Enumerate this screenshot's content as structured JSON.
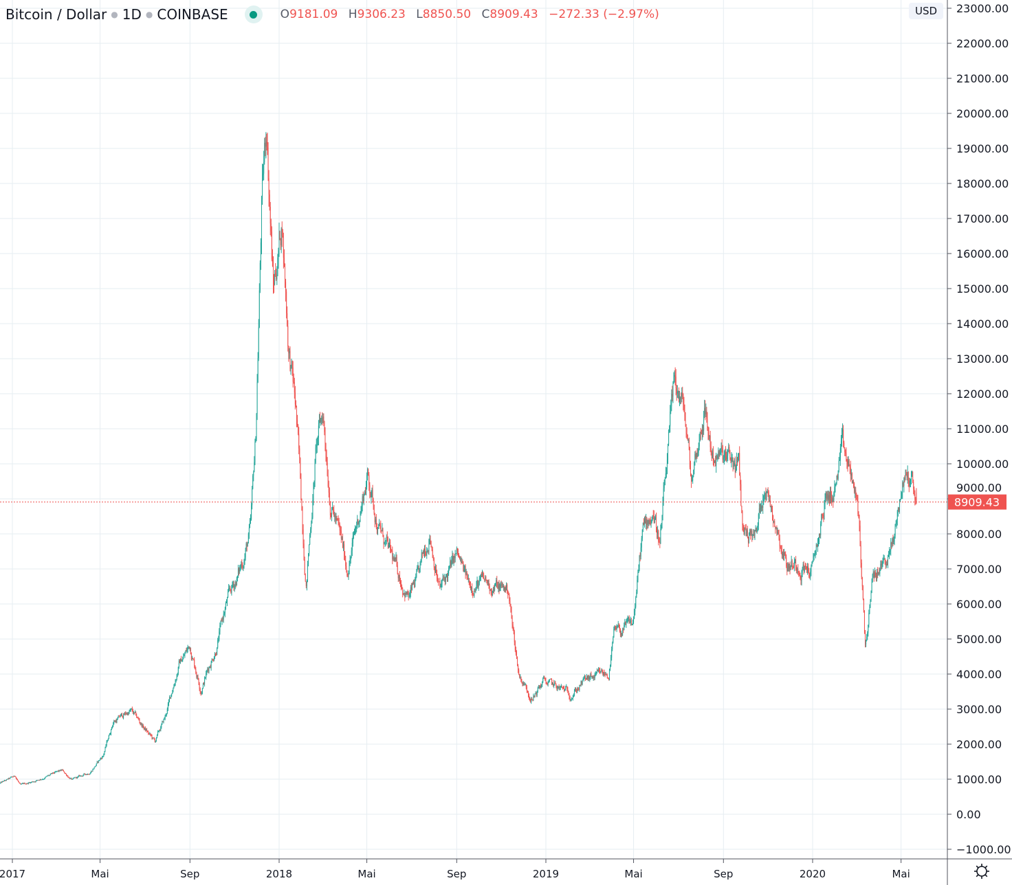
{
  "legend": {
    "symbol": "Bitcoin / Dollar",
    "interval": "1D",
    "exchange": "COINBASE",
    "open_key": "O",
    "open": "9181.09",
    "high_key": "H",
    "high": "9306.23",
    "low_key": "L",
    "low": "8850.50",
    "close_key": "C",
    "close": "8909.43",
    "change": "−272.33 (−2.97%)"
  },
  "currency_badge": "USD",
  "last_price_label": "8909.43",
  "colors": {
    "up": "#26a69a",
    "down": "#ef5350",
    "grid": "#e6edf2",
    "axis": "#50535e",
    "last_price": "#ef5350"
  },
  "settings_icon": "gear-icon",
  "chart_data": {
    "type": "candlestick",
    "title": "Bitcoin / Dollar · 1D · COINBASE",
    "xlabel": "",
    "ylabel": "USD",
    "ylim": [
      -1000,
      23000
    ],
    "y_ticks": [
      "23000.00",
      "22000.00",
      "21000.00",
      "20000.00",
      "19000.00",
      "18000.00",
      "17000.00",
      "16000.00",
      "15000.00",
      "14000.00",
      "13000.00",
      "12000.00",
      "11000.00",
      "10000.00",
      "9000.00",
      "8000.00",
      "7000.00",
      "6000.00",
      "5000.00",
      "4000.00",
      "3000.00",
      "2000.00",
      "1000.00",
      "0.00",
      "−1000.00"
    ],
    "x_ticks": [
      {
        "label": "2017",
        "day": 0
      },
      {
        "label": "Mai",
        "day": 120
      },
      {
        "label": "Sep",
        "day": 243
      },
      {
        "label": "2018",
        "day": 365
      },
      {
        "label": "Mai",
        "day": 485
      },
      {
        "label": "Sep",
        "day": 608
      },
      {
        "label": "2019",
        "day": 730
      },
      {
        "label": "Mai",
        "day": 850
      },
      {
        "label": "Sep",
        "day": 973
      },
      {
        "label": "2020",
        "day": 1095
      },
      {
        "label": "Mai",
        "day": 1216
      }
    ],
    "x_range_days": [
      -17,
      1280
    ],
    "day_origin": "2017-01-01",
    "close_keypoints_day_price": [
      [
        -17,
        880
      ],
      [
        4,
        1080
      ],
      [
        11,
        820
      ],
      [
        40,
        1020
      ],
      [
        68,
        1235
      ],
      [
        82,
        980
      ],
      [
        105,
        1180
      ],
      [
        124,
        1670
      ],
      [
        138,
        2650
      ],
      [
        162,
        2950
      ],
      [
        195,
        2060
      ],
      [
        209,
        2750
      ],
      [
        228,
        4300
      ],
      [
        243,
        4800
      ],
      [
        258,
        3600
      ],
      [
        279,
        4800
      ],
      [
        293,
        6000
      ],
      [
        312,
        7000
      ],
      [
        326,
        8100
      ],
      [
        333,
        10700
      ],
      [
        341,
        17300
      ],
      [
        348,
        19700
      ],
      [
        357,
        15000
      ],
      [
        369,
        17000
      ],
      [
        378,
        13400
      ],
      [
        388,
        11500
      ],
      [
        402,
        6600
      ],
      [
        416,
        10500
      ],
      [
        425,
        11400
      ],
      [
        435,
        9100
      ],
      [
        458,
        7000
      ],
      [
        472,
        8300
      ],
      [
        486,
        9700
      ],
      [
        500,
        8300
      ],
      [
        514,
        7500
      ],
      [
        529,
        6800
      ],
      [
        543,
        6200
      ],
      [
        557,
        6800
      ],
      [
        571,
        8100
      ],
      [
        585,
        6400
      ],
      [
        608,
        7350
      ],
      [
        623,
        6600
      ],
      [
        641,
        6600
      ],
      [
        679,
        6400
      ],
      [
        684,
        5400
      ],
      [
        693,
        4000
      ],
      [
        712,
        3300
      ],
      [
        726,
        3800
      ],
      [
        745,
        3600
      ],
      [
        764,
        3450
      ],
      [
        783,
        3800
      ],
      [
        816,
        4000
      ],
      [
        823,
        5100
      ],
      [
        849,
        5400
      ],
      [
        862,
        7950
      ],
      [
        877,
        8700
      ],
      [
        886,
        7750
      ],
      [
        900,
        10900
      ],
      [
        907,
        12250
      ],
      [
        919,
        11500
      ],
      [
        929,
        9500
      ],
      [
        947,
        11650
      ],
      [
        957,
        10300
      ],
      [
        971,
        10100
      ],
      [
        994,
        9900
      ],
      [
        999,
        8150
      ],
      [
        1018,
        7950
      ],
      [
        1029,
        9500
      ],
      [
        1046,
        8300
      ],
      [
        1060,
        7150
      ],
      [
        1079,
        7150
      ],
      [
        1095,
        6950
      ],
      [
        1112,
        8900
      ],
      [
        1126,
        9300
      ],
      [
        1135,
        10300
      ],
      [
        1150,
        9500
      ],
      [
        1159,
        8150
      ],
      [
        1167,
        4800
      ],
      [
        1178,
        6750
      ],
      [
        1192,
        7150
      ],
      [
        1206,
        7750
      ],
      [
        1215,
        9100
      ],
      [
        1223,
        9700
      ],
      [
        1232,
        9500
      ],
      [
        1237,
        8909.43
      ]
    ],
    "last_candle": {
      "open": 9181.09,
      "high": 9306.23,
      "low": 8850.5,
      "close": 8909.43
    },
    "last_price": 8909.43,
    "grid": true
  }
}
